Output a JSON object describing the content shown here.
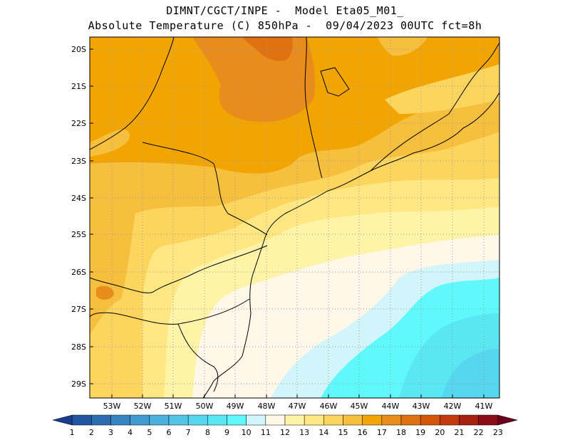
{
  "title_line1": "DIMNT/CGCT/INPE -  Model Eta05_M01_",
  "title_line2": "Absolute Temperature (C) 850hPa -  09/04/2023 00UTC fct=8h",
  "lat_labels": [
    "20S",
    "21S",
    "22S",
    "23S",
    "24S",
    "25S",
    "26S",
    "27S",
    "28S",
    "29S"
  ],
  "lon_labels": [
    "53W",
    "52W",
    "51W",
    "50W",
    "49W",
    "48W",
    "47W",
    "46W",
    "45W",
    "44W",
    "43W",
    "42W",
    "41W"
  ],
  "colorbar": {
    "labels": [
      "1",
      "2",
      "3",
      "4",
      "5",
      "6",
      "7",
      "8",
      "9",
      "10",
      "11",
      "12",
      "13",
      "14",
      "15",
      "16",
      "17",
      "18",
      "19",
      "20",
      "21",
      "22",
      "23"
    ],
    "colors": [
      "#1a3e8c",
      "#2356a0",
      "#2c6db2",
      "#3784c2",
      "#3f9bd0",
      "#4ab0dc",
      "#54c4e6",
      "#56d6ef",
      "#5ae7f4",
      "#5ff8fb",
      "#d2f4fb",
      "#fff7e8",
      "#fff3a8",
      "#ffe883",
      "#fcd55e",
      "#f7bf3e",
      "#f2a500",
      "#e88c1b",
      "#e07110",
      "#d45508",
      "#c2390b",
      "#a8200f",
      "#8a0d16",
      "#6a0019"
    ]
  }
}
